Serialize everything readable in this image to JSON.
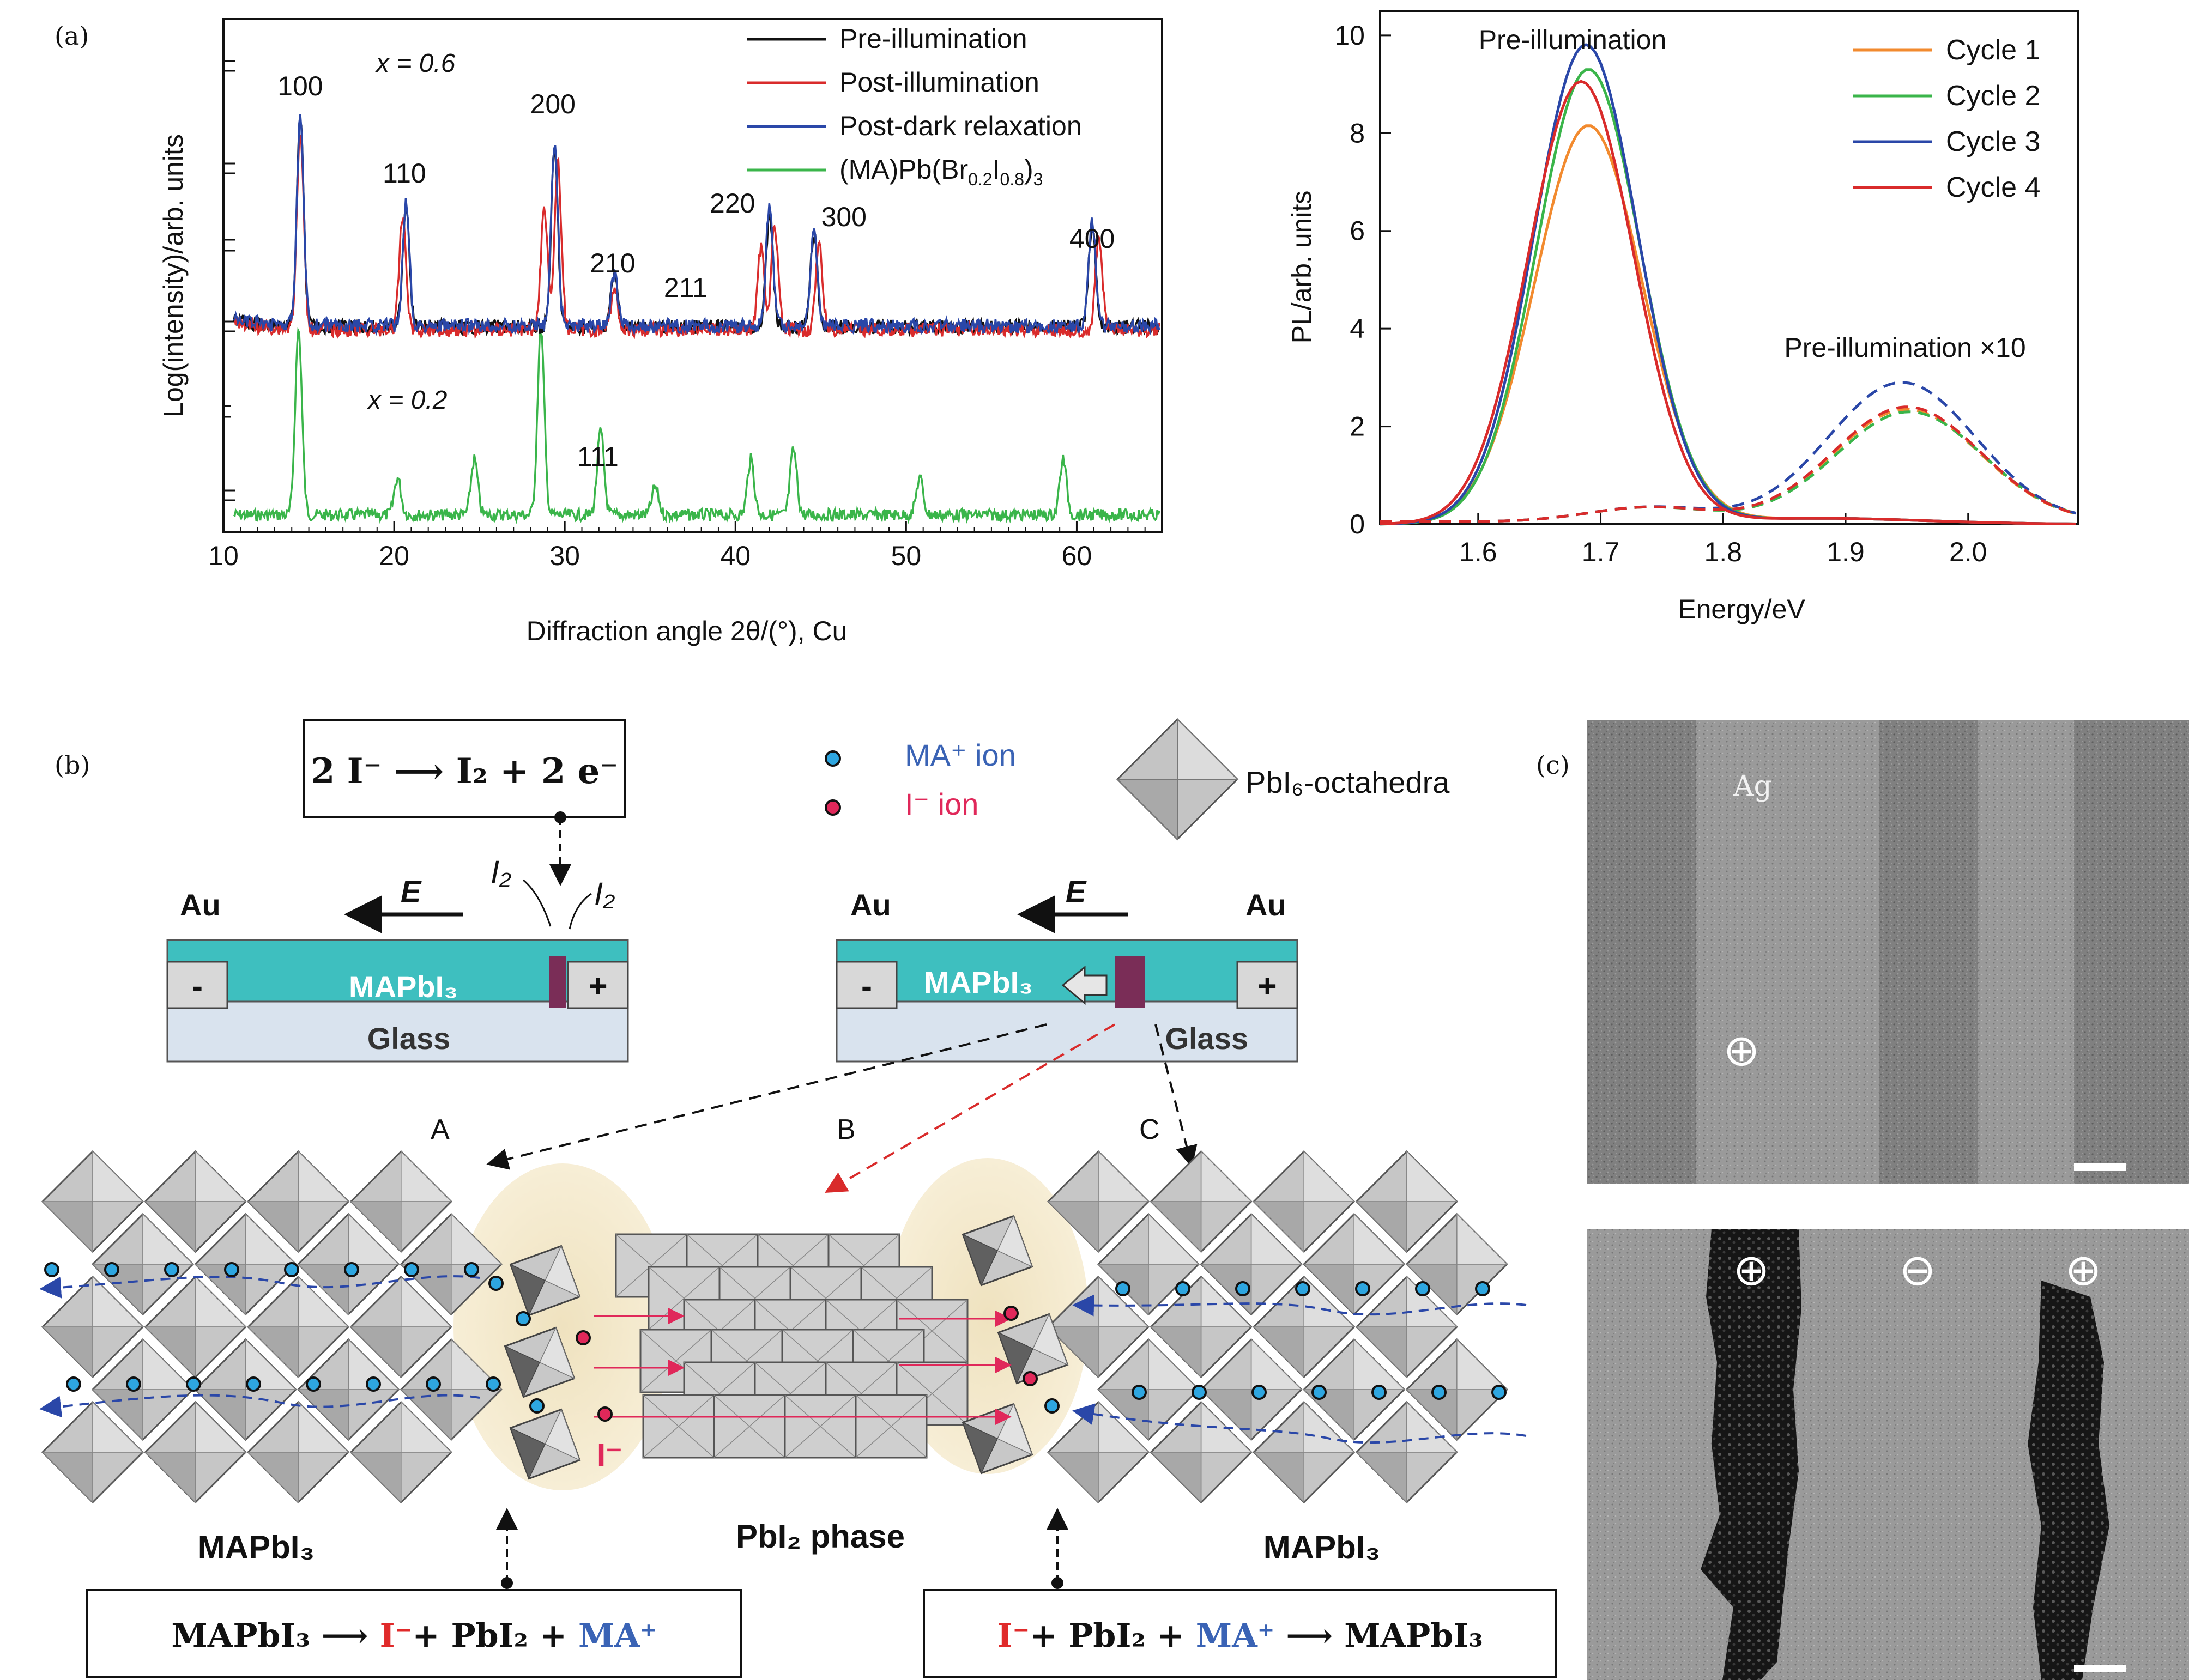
{
  "panels": {
    "a": "(a)",
    "b": "(b)",
    "c": "(c)"
  },
  "chart_data": [
    {
      "type": "line",
      "ylabel": "Log(intensity)/arb. units",
      "xlabel": "Diffraction angle 2θ/(°), Cu",
      "xlim": [
        10,
        65
      ],
      "xticks": [
        10,
        20,
        30,
        40,
        50,
        60
      ],
      "grid": false,
      "legend_position": "top-right",
      "annotations": {
        "x1": "x = 0.6",
        "x2": "x = 0.2"
      },
      "peak_labels": [
        {
          "text": "100",
          "x": 14.5
        },
        {
          "text": "110",
          "x": 20.6
        },
        {
          "text": "200",
          "x": 29.3
        },
        {
          "text": "210",
          "x": 32.8
        },
        {
          "text": "211",
          "x": 35.8
        },
        {
          "text": "220",
          "x": 41.9
        },
        {
          "text": "300",
          "x": 44.6
        },
        {
          "text": "400",
          "x": 60.9
        },
        {
          "text": "111",
          "x": 29.7
        }
      ],
      "series": [
        {
          "name": "Pre-illumination",
          "color": "#111111",
          "peaks": [
            [
              14.5,
              1.0
            ],
            [
              20.7,
              0.6
            ],
            [
              29.4,
              0.85
            ],
            [
              32.9,
              0.25
            ],
            [
              42.0,
              0.55
            ],
            [
              44.6,
              0.45
            ],
            [
              60.9,
              0.5
            ]
          ]
        },
        {
          "name": "Post-illumination",
          "color": "#d92b2b",
          "peaks": [
            [
              14.5,
              0.95
            ],
            [
              20.5,
              0.55
            ],
            [
              28.8,
              0.6
            ],
            [
              29.6,
              0.8
            ],
            [
              32.9,
              0.2
            ],
            [
              41.5,
              0.4
            ],
            [
              42.3,
              0.5
            ],
            [
              44.9,
              0.4
            ],
            [
              61.3,
              0.45
            ]
          ]
        },
        {
          "name": "Post-dark relaxation",
          "color": "#2a47a8",
          "peaks": [
            [
              14.5,
              1.0
            ],
            [
              20.7,
              0.6
            ],
            [
              29.4,
              0.88
            ],
            [
              32.9,
              0.25
            ],
            [
              42.0,
              0.6
            ],
            [
              44.6,
              0.45
            ],
            [
              60.9,
              0.52
            ]
          ]
        },
        {
          "name": "(MA)Pb(Br",
          "name_sub1": "0.2",
          "name_mid": "I",
          "name_sub2": "0.8",
          "name_end": ")",
          "name_sub3": "3",
          "color": "#3ab54a",
          "peaks": [
            [
              14.4,
              1.0
            ],
            [
              20.2,
              0.2
            ],
            [
              24.7,
              0.3
            ],
            [
              28.6,
              1.0
            ],
            [
              32.1,
              0.45
            ],
            [
              35.3,
              0.15
            ],
            [
              40.9,
              0.3
            ],
            [
              43.4,
              0.35
            ],
            [
              50.8,
              0.2
            ],
            [
              59.2,
              0.3
            ]
          ]
        }
      ]
    },
    {
      "type": "line",
      "ylabel": "PL/arb. units",
      "xlabel": "Energy/eV",
      "xlim": [
        1.52,
        2.09
      ],
      "ylim": [
        0,
        10.5
      ],
      "xticks": [
        1.6,
        1.7,
        1.8,
        1.9,
        2.0
      ],
      "yticks": [
        0,
        2,
        4,
        6,
        8,
        10
      ],
      "grid": false,
      "legend_position": "top-right",
      "annotations": {
        "top": "Pre-illumination",
        "side": "Pre-illumination ×10"
      },
      "series": [
        {
          "name": "Cycle 1",
          "color": "#f28a2e",
          "peak": 1.69,
          "height": 8.15,
          "width": 0.062,
          "dashed_peak": 1.95,
          "dashed_height": 2.3
        },
        {
          "name": "Cycle 2",
          "color": "#3ab54a",
          "peak": 1.69,
          "height": 9.3,
          "width": 0.06,
          "dashed_peak": 1.952,
          "dashed_height": 2.25
        },
        {
          "name": "Cycle 3",
          "color": "#2a47a8",
          "peak": 1.688,
          "height": 9.8,
          "width": 0.06,
          "dashed_peak": 1.946,
          "dashed_height": 2.85
        },
        {
          "name": "Cycle 4",
          "color": "#d92b2b",
          "peak": 1.684,
          "height": 9.05,
          "width": 0.061,
          "dashed_peak": 1.95,
          "dashed_height": 2.35
        }
      ]
    }
  ],
  "diagram": {
    "reaction_top": "2 I⁻ ⟶ I₂ + 2 e⁻",
    "i2": "I₂",
    "au": "Au",
    "field": "E",
    "mapbi3": "MAPbI₃",
    "glass": "Glass",
    "minus": "-",
    "plus": "+",
    "legend_ma": "MA⁺ ion",
    "legend_i": "I⁻ ion",
    "legend_oct": "PbI₆-octahedra",
    "region_a": "A",
    "region_b": "B",
    "region_c": "C",
    "i_minus": "I⁻",
    "left_label": "MAPbI₃",
    "mid_label": "PbI₂ phase",
    "right_label": "MAPbI₃",
    "eq_left_a": "MAPbI₃ ⟶ ",
    "eq_left_i": "I⁻",
    "eq_left_b": "+ PbI₂ + ",
    "eq_left_ma": "MA⁺",
    "eq_right_i": "I⁻",
    "eq_right_a": "+ PbI₂ + ",
    "eq_right_ma": "MA⁺",
    "eq_right_b": " ⟶ MAPbI₃",
    "colors": {
      "teal": "#3ebfbf",
      "glass": "#d9e3ee",
      "blue_ion": "#2ea6e0",
      "red_ion": "#e0285a",
      "purple": "#7a2d57",
      "blue_text": "#3a63b5",
      "red_text": "#e02a2a"
    }
  },
  "micrographs": {
    "ag": "Ag",
    "top_plus": "⊕",
    "bottom_signs": [
      "⊕",
      "⊖",
      "⊕"
    ]
  }
}
